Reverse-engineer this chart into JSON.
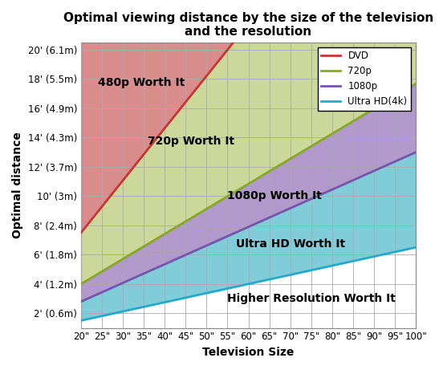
{
  "title": "Optimal viewing distance by the size of the television\nand the resolution",
  "xlabel": "Television Size",
  "ylabel": "Optimal distance",
  "xtick_labels": [
    "20\"",
    "25\"",
    "30\"",
    "35\"",
    "40\"",
    "45\"",
    "50\"",
    "55\"",
    "60\"",
    "65\"",
    "70\"",
    "75\"",
    "80\"",
    "85\"",
    "90\"",
    "95\"",
    "100\""
  ],
  "ytick_values": [
    2,
    4,
    6,
    8,
    10,
    12,
    14,
    16,
    18,
    20
  ],
  "ytick_labels": [
    "2' (0.6m)",
    "4' (1.2m)",
    "6' (1.8m)",
    "8' (2.4m)",
    "10' (3m)",
    "12' (3.7m)",
    "14' (4.3m)",
    "16' (4.9m)",
    "18' (5.5m)",
    "20' (6.1m)"
  ],
  "ymin": 1.0,
  "ymax": 20.5,
  "xmin": 20,
  "xmax": 100,
  "dvd_slope": 0.357,
  "dvd_intercept": 0.36,
  "p720_slope": 0.171,
  "p720_intercept": 0.58,
  "p1080_slope": 0.1275,
  "p1080_intercept": 0.25,
  "uhd_slope": 0.0625,
  "uhd_intercept": 0.25,
  "color_480p_region": "#CC6666",
  "color_720p_region": "#BBCC77",
  "color_1080p_region": "#9977BB",
  "color_uhd_region": "#55BBCC",
  "color_higher_region": "#FFFFFF",
  "color_dvd_line": "#CC3333",
  "color_720p_line": "#88AA22",
  "color_1080p_line": "#7755AA",
  "color_uhd_line": "#22AACC",
  "alpha_region": 0.75,
  "label_480p": "480p Worth It",
  "label_720p": "720p Worth It",
  "label_1080p": "1080p Worth It",
  "label_uhd": "Ultra HD Worth It",
  "label_higher": "Higher Resolution Worth It",
  "legend_labels": [
    "DVD",
    "720p",
    "1080p",
    "Ultra HD(4k)"
  ],
  "grid_color": "#AAAAAA",
  "title_fontsize": 11,
  "axis_label_fontsize": 10,
  "tick_fontsize": 8.5,
  "region_label_fontsize": 10
}
